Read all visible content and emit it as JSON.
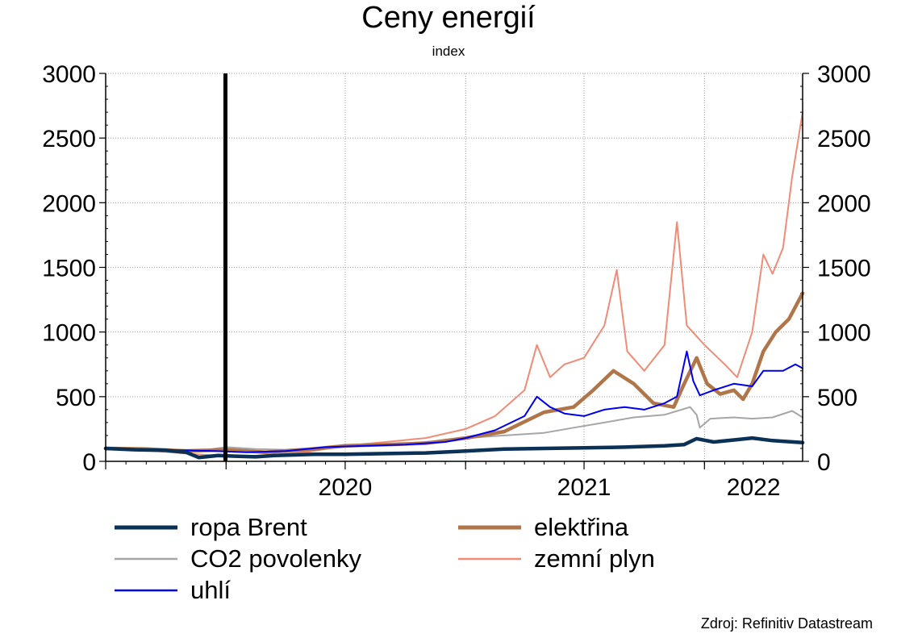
{
  "chart_data": {
    "type": "line",
    "title": "Ceny energií",
    "subtitle": "index",
    "source": "Zdroj: Refinitiv Datastream",
    "ylim": [
      0,
      3000
    ],
    "yticks": [
      0,
      500,
      1000,
      1500,
      2000,
      2500,
      3000
    ],
    "xlim": [
      "2019-07-01",
      "2022-05-31"
    ],
    "xticks": [
      "2019-07-01",
      "2020-01-01",
      "2020-07-01",
      "2021-01-01",
      "2021-07-01",
      "2022-01-01"
    ],
    "xtick_labels": [
      {
        "date": "2020-01-01",
        "label": "2020"
      },
      {
        "date": "2021-01-01",
        "label": "2021"
      },
      {
        "date": "2022-01-01",
        "label": "2022"
      }
    ],
    "vertical_marker": "2019-12-31",
    "grid": true,
    "legend_position": "bottom",
    "series": [
      {
        "name": "ropa Brent",
        "color": "#0b3156",
        "points": [
          [
            "2019-07-01",
            100
          ],
          [
            "2019-08-15",
            90
          ],
          [
            "2019-10-01",
            85
          ],
          [
            "2019-11-01",
            70
          ],
          [
            "2019-11-20",
            30
          ],
          [
            "2019-12-20",
            45
          ],
          [
            "2020-01-15",
            40
          ],
          [
            "2020-02-15",
            35
          ],
          [
            "2020-03-15",
            45
          ],
          [
            "2020-04-15",
            50
          ],
          [
            "2020-05-15",
            55
          ],
          [
            "2020-07-01",
            55
          ],
          [
            "2020-09-01",
            60
          ],
          [
            "2020-11-01",
            65
          ],
          [
            "2021-01-01",
            80
          ],
          [
            "2021-03-01",
            95
          ],
          [
            "2021-05-01",
            100
          ],
          [
            "2021-07-01",
            105
          ],
          [
            "2021-09-01",
            110
          ],
          [
            "2021-11-01",
            120
          ],
          [
            "2021-12-01",
            130
          ],
          [
            "2021-12-20",
            175
          ],
          [
            "2022-01-15",
            150
          ],
          [
            "2022-02-15",
            165
          ],
          [
            "2022-03-15",
            180
          ],
          [
            "2022-04-15",
            160
          ],
          [
            "2022-05-31",
            145
          ]
        ]
      },
      {
        "name": "CO2 povolenky",
        "color": "#a6a6a6",
        "points": [
          [
            "2019-07-01",
            100
          ],
          [
            "2019-08-15",
            95
          ],
          [
            "2019-10-01",
            90
          ],
          [
            "2019-12-01",
            88
          ],
          [
            "2020-01-01",
            110
          ],
          [
            "2020-02-15",
            95
          ],
          [
            "2020-04-01",
            90
          ],
          [
            "2020-06-01",
            110
          ],
          [
            "2020-08-01",
            130
          ],
          [
            "2020-10-01",
            140
          ],
          [
            "2020-12-01",
            160
          ],
          [
            "2021-01-01",
            180
          ],
          [
            "2021-03-01",
            200
          ],
          [
            "2021-05-01",
            220
          ],
          [
            "2021-06-15",
            260
          ],
          [
            "2021-08-01",
            300
          ],
          [
            "2021-09-15",
            340
          ],
          [
            "2021-11-01",
            360
          ],
          [
            "2021-12-10",
            420
          ],
          [
            "2021-12-20",
            360
          ],
          [
            "2021-12-25",
            260
          ],
          [
            "2022-01-10",
            330
          ],
          [
            "2022-02-15",
            340
          ],
          [
            "2022-03-15",
            330
          ],
          [
            "2022-04-15",
            340
          ],
          [
            "2022-05-15",
            390
          ],
          [
            "2022-05-31",
            340
          ]
        ]
      },
      {
        "name": "uhlí",
        "color": "#0000ee",
        "points": [
          [
            "2019-07-01",
            100
          ],
          [
            "2019-09-01",
            90
          ],
          [
            "2019-11-01",
            85
          ],
          [
            "2019-12-15",
            80
          ],
          [
            "2020-02-01",
            70
          ],
          [
            "2020-04-01",
            80
          ],
          [
            "2020-06-01",
            110
          ],
          [
            "2020-08-01",
            120
          ],
          [
            "2020-10-01",
            130
          ],
          [
            "2020-12-01",
            150
          ],
          [
            "2021-01-01",
            180
          ],
          [
            "2021-02-15",
            240
          ],
          [
            "2021-04-01",
            350
          ],
          [
            "2021-04-20",
            500
          ],
          [
            "2021-05-10",
            420
          ],
          [
            "2021-06-01",
            370
          ],
          [
            "2021-07-01",
            350
          ],
          [
            "2021-08-01",
            400
          ],
          [
            "2021-09-01",
            420
          ],
          [
            "2021-10-01",
            400
          ],
          [
            "2021-11-01",
            450
          ],
          [
            "2021-11-20",
            500
          ],
          [
            "2021-12-05",
            850
          ],
          [
            "2021-12-15",
            620
          ],
          [
            "2021-12-25",
            510
          ],
          [
            "2022-01-15",
            550
          ],
          [
            "2022-02-15",
            600
          ],
          [
            "2022-03-15",
            580
          ],
          [
            "2022-04-01",
            700
          ],
          [
            "2022-05-01",
            700
          ],
          [
            "2022-05-20",
            750
          ],
          [
            "2022-05-31",
            720
          ]
        ]
      },
      {
        "name": "elektřina",
        "color": "#b07548",
        "points": [
          [
            "2019-07-01",
            100
          ],
          [
            "2019-09-01",
            95
          ],
          [
            "2019-11-01",
            80
          ],
          [
            "2020-01-01",
            90
          ],
          [
            "2020-03-01",
            70
          ],
          [
            "2020-05-01",
            90
          ],
          [
            "2020-07-01",
            120
          ],
          [
            "2020-09-01",
            130
          ],
          [
            "2020-11-01",
            140
          ],
          [
            "2021-01-01",
            180
          ],
          [
            "2021-03-01",
            230
          ],
          [
            "2021-05-01",
            380
          ],
          [
            "2021-06-15",
            420
          ],
          [
            "2021-07-15",
            550
          ],
          [
            "2021-08-15",
            700
          ],
          [
            "2021-09-15",
            600
          ],
          [
            "2021-10-15",
            450
          ],
          [
            "2021-11-15",
            420
          ],
          [
            "2021-12-01",
            600
          ],
          [
            "2021-12-20",
            800
          ],
          [
            "2022-01-05",
            600
          ],
          [
            "2022-01-25",
            520
          ],
          [
            "2022-02-15",
            550
          ],
          [
            "2022-03-01",
            480
          ],
          [
            "2022-03-15",
            600
          ],
          [
            "2022-04-01",
            850
          ],
          [
            "2022-04-20",
            1000
          ],
          [
            "2022-05-10",
            1100
          ],
          [
            "2022-05-31",
            1300
          ]
        ]
      },
      {
        "name": "zemní plyn",
        "color": "#f08c76",
        "points": [
          [
            "2019-07-01",
            100
          ],
          [
            "2019-09-01",
            85
          ],
          [
            "2019-11-01",
            60
          ],
          [
            "2020-01-01",
            40
          ],
          [
            "2020-03-01",
            45
          ],
          [
            "2020-05-01",
            70
          ],
          [
            "2020-07-01",
            120
          ],
          [
            "2020-09-01",
            150
          ],
          [
            "2020-11-01",
            180
          ],
          [
            "2021-01-01",
            250
          ],
          [
            "2021-02-15",
            350
          ],
          [
            "2021-04-01",
            550
          ],
          [
            "2021-04-20",
            900
          ],
          [
            "2021-05-10",
            650
          ],
          [
            "2021-06-01",
            750
          ],
          [
            "2021-07-01",
            800
          ],
          [
            "2021-08-01",
            1050
          ],
          [
            "2021-08-20",
            1480
          ],
          [
            "2021-09-05",
            850
          ],
          [
            "2021-10-01",
            700
          ],
          [
            "2021-11-01",
            900
          ],
          [
            "2021-11-20",
            1850
          ],
          [
            "2021-12-05",
            1050
          ],
          [
            "2022-01-01",
            900
          ],
          [
            "2022-02-01",
            750
          ],
          [
            "2022-02-20",
            650
          ],
          [
            "2022-03-15",
            1000
          ],
          [
            "2022-04-01",
            1600
          ],
          [
            "2022-04-15",
            1450
          ],
          [
            "2022-05-01",
            1650
          ],
          [
            "2022-05-15",
            2200
          ],
          [
            "2022-05-31",
            2700
          ]
        ]
      }
    ]
  },
  "legend": {
    "items": [
      {
        "label": "ropa Brent",
        "color": "#0b3156",
        "width": 5
      },
      {
        "label": "elektřina",
        "color": "#b07548",
        "width": 5
      },
      {
        "label": "CO2 povolenky",
        "color": "#a6a6a6",
        "width": 2.5
      },
      {
        "label": "zemní plyn",
        "color": "#f08c76",
        "width": 2.5
      },
      {
        "label": "uhlí",
        "color": "#0000ee",
        "width": 2.5
      }
    ]
  }
}
